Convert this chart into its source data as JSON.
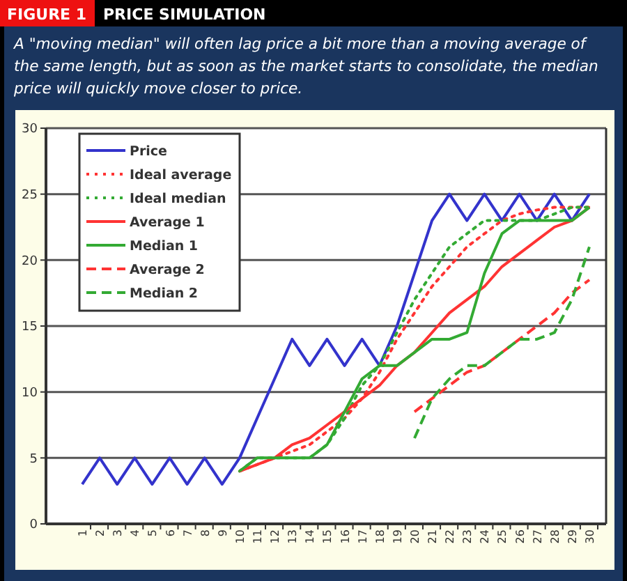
{
  "chart_data": {
    "type": "line",
    "title": "FIGURE 1",
    "subtitle": "PRICE SIMULATION",
    "annotations": [
      "A \"moving median\" will often lag price a bit more than a moving average of the same length, but as soon as the market starts to consolidate, the median price will quickly move closer to price."
    ],
    "categories": [
      "1",
      "2",
      "3",
      "4",
      "5",
      "6",
      "7",
      "8",
      "9",
      "10",
      "11",
      "12",
      "13",
      "14",
      "15",
      "16",
      "17",
      "18",
      "19",
      "20",
      "21",
      "22",
      "23",
      "24",
      "25",
      "26",
      "27",
      "28",
      "29",
      "30"
    ],
    "series": [
      {
        "name": "Price",
        "color": "#3333cc",
        "line_style": "solid",
        "values": [
          3,
          5,
          3,
          5,
          3,
          5,
          3,
          5,
          3,
          5,
          8,
          11,
          14,
          12,
          14,
          12,
          14,
          12,
          15,
          19,
          23,
          25,
          23,
          25,
          23,
          25,
          23,
          25,
          23,
          25
        ]
      },
      {
        "name": "Ideal average",
        "color": "#ff3333",
        "line_style": "dotted",
        "values": [
          null,
          null,
          null,
          null,
          null,
          null,
          null,
          null,
          null,
          4,
          4.5,
          5,
          5.5,
          6,
          7,
          8,
          9.5,
          11.5,
          14,
          16,
          18,
          19.5,
          21,
          22,
          23,
          23.5,
          23.8,
          24,
          24,
          24
        ]
      },
      {
        "name": "Ideal median",
        "color": "#33aa33",
        "line_style": "dotted",
        "values": [
          null,
          null,
          null,
          null,
          null,
          null,
          null,
          null,
          null,
          4,
          5,
          5,
          5,
          5,
          6,
          8,
          10.5,
          12,
          14.5,
          17,
          19,
          21,
          22,
          23,
          23,
          23,
          23,
          23.5,
          24,
          24
        ]
      },
      {
        "name": "Average 1",
        "color": "#ff3333",
        "line_style": "solid",
        "values": [
          null,
          null,
          null,
          null,
          null,
          null,
          null,
          null,
          null,
          4,
          4.5,
          5,
          6,
          6.5,
          7.5,
          8.5,
          9.5,
          10.5,
          12,
          13,
          14.5,
          16,
          17,
          18,
          19.5,
          20.5,
          21.5,
          22.5,
          23,
          24
        ]
      },
      {
        "name": "Median 1",
        "color": "#33aa33",
        "line_style": "solid",
        "values": [
          null,
          null,
          null,
          null,
          null,
          null,
          null,
          null,
          null,
          4,
          5,
          5,
          5,
          5,
          6,
          8.5,
          11,
          12,
          12,
          13,
          14,
          14,
          14.5,
          19,
          22,
          23,
          23,
          23,
          23,
          24
        ]
      },
      {
        "name": "Average 2",
        "color": "#ff3333",
        "line_style": "dashed",
        "values": [
          null,
          null,
          null,
          null,
          null,
          null,
          null,
          null,
          null,
          null,
          null,
          null,
          null,
          null,
          null,
          null,
          null,
          null,
          null,
          8.5,
          9.5,
          10.5,
          11.5,
          12,
          13,
          14,
          15,
          16,
          17.5,
          18.5
        ]
      },
      {
        "name": "Median 2",
        "color": "#33aa33",
        "line_style": "dashed",
        "values": [
          null,
          null,
          null,
          null,
          null,
          null,
          null,
          null,
          null,
          null,
          null,
          null,
          null,
          null,
          null,
          null,
          null,
          null,
          null,
          6.5,
          9.5,
          11,
          12,
          12,
          13,
          14,
          14,
          14.5,
          17,
          21
        ]
      }
    ],
    "ylim": [
      0,
      30
    ],
    "yticks": [
      0,
      5,
      10,
      15,
      20,
      25,
      30
    ],
    "grid": "y",
    "legend": "top left"
  }
}
